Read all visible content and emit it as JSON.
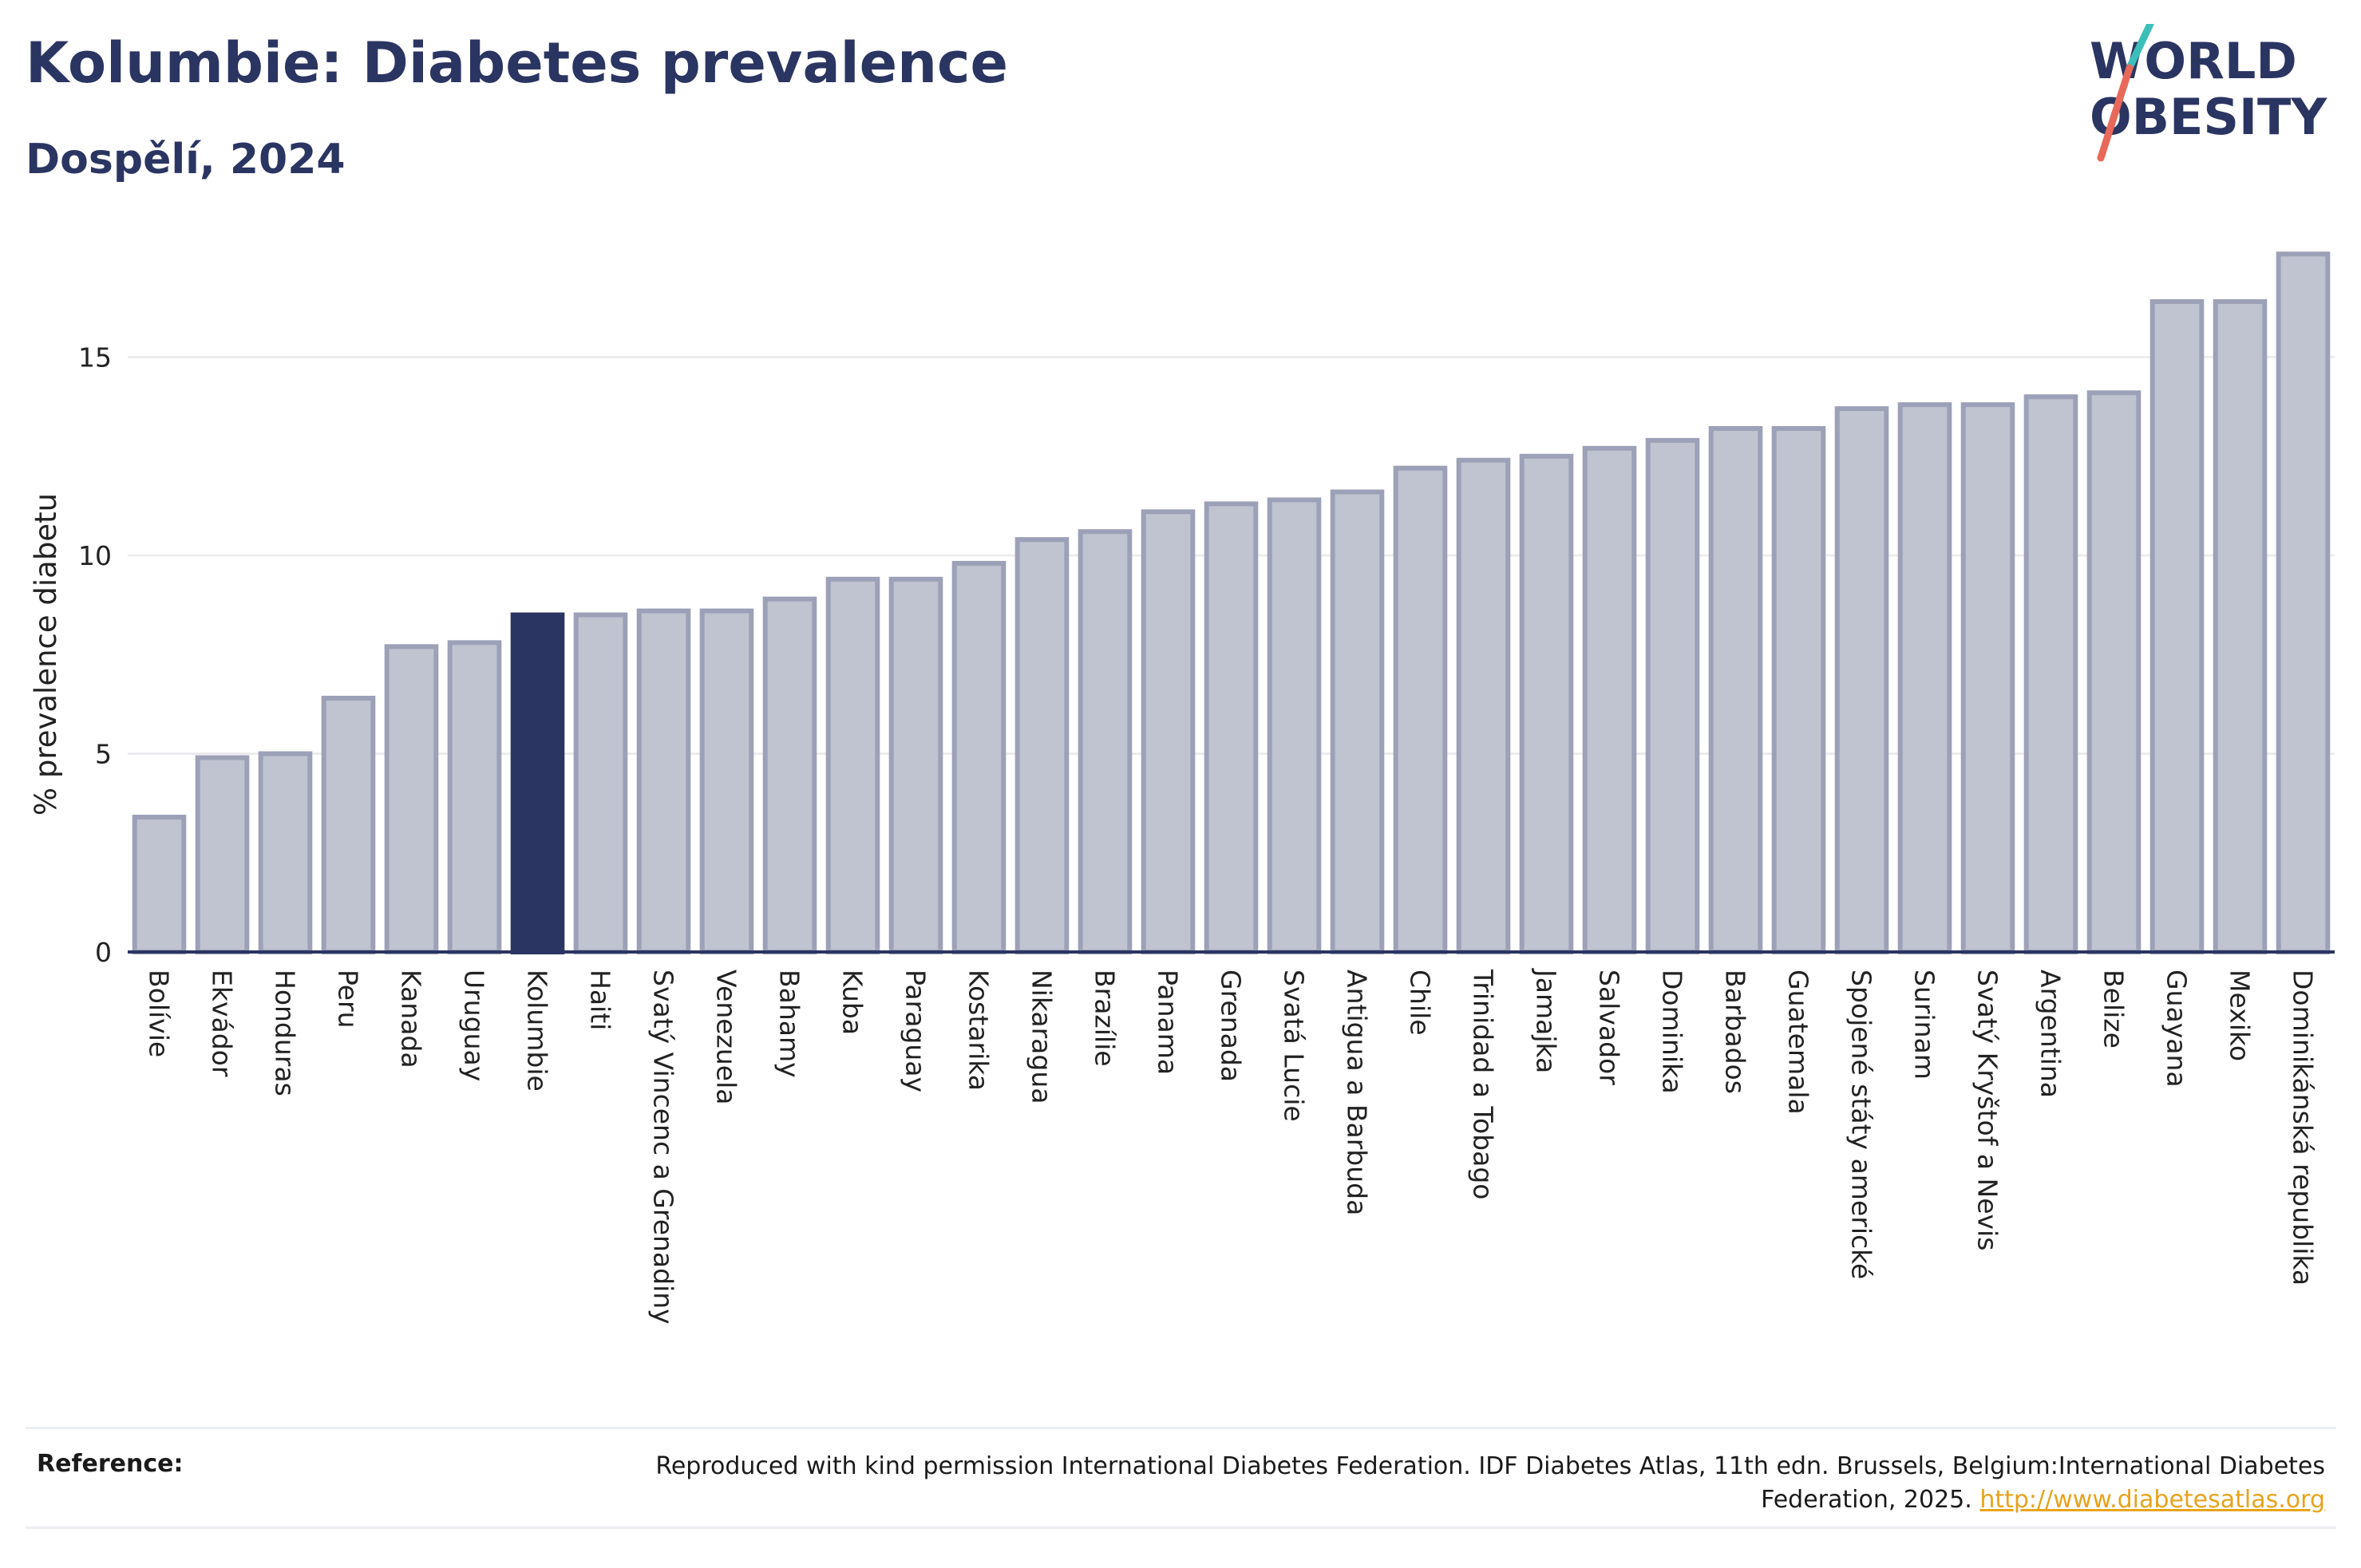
{
  "title": "Kolumbie: Diabetes prevalence",
  "subtitle": "Dospělí, 2024",
  "logo": {
    "line1": "WORLD",
    "line2": "OBESITY"
  },
  "reference": {
    "label": "Reference:",
    "text": "Reproduced with kind permission International Diabetes Federation. IDF Diabetes Atlas, 11th edn. Brussels, Belgium:International Diabetes Federation, 2025.",
    "link": "http://www.diabetesatlas.org"
  },
  "colors": {
    "bar": "#c0c3d0",
    "bar_border": "#9da1b7",
    "highlight": "#2b3562",
    "title": "#2b3562"
  },
  "chart_data": {
    "type": "bar",
    "ylabel": "% prevalence diabetu",
    "ylim": [
      0,
      18
    ],
    "yticks": [
      0,
      5,
      10,
      15
    ],
    "grid": true,
    "highlight": "Kolumbie",
    "categories": [
      "Bolívie",
      "Ekvádor",
      "Honduras",
      "Peru",
      "Kanada",
      "Uruguay",
      "Kolumbie",
      "Haiti",
      "Svatý Vincenc a Grenadiny",
      "Venezuela",
      "Bahamy",
      "Kuba",
      "Paraguay",
      "Kostarika",
      "Nikaragua",
      "Brazílie",
      "Panama",
      "Grenada",
      "Svatá Lucie",
      "Antigua a Barbuda",
      "Chile",
      "Trinidad a Tobago",
      "Jamajka",
      "Salvador",
      "Dominika",
      "Barbados",
      "Guatemala",
      "Spojené státy americké",
      "Surinam",
      "Svatý Kryštof a Nevis",
      "Argentina",
      "Belize",
      "Guayana",
      "Mexiko",
      "Dominikánská republika"
    ],
    "values": [
      3.4,
      4.9,
      5.0,
      6.4,
      7.7,
      7.8,
      8.5,
      8.5,
      8.6,
      8.6,
      8.9,
      9.4,
      9.4,
      9.8,
      10.4,
      10.6,
      11.1,
      11.3,
      11.4,
      11.6,
      12.2,
      12.4,
      12.5,
      12.7,
      12.9,
      13.2,
      13.2,
      13.7,
      13.8,
      13.8,
      14.0,
      14.1,
      16.4,
      16.4,
      17.6
    ]
  }
}
